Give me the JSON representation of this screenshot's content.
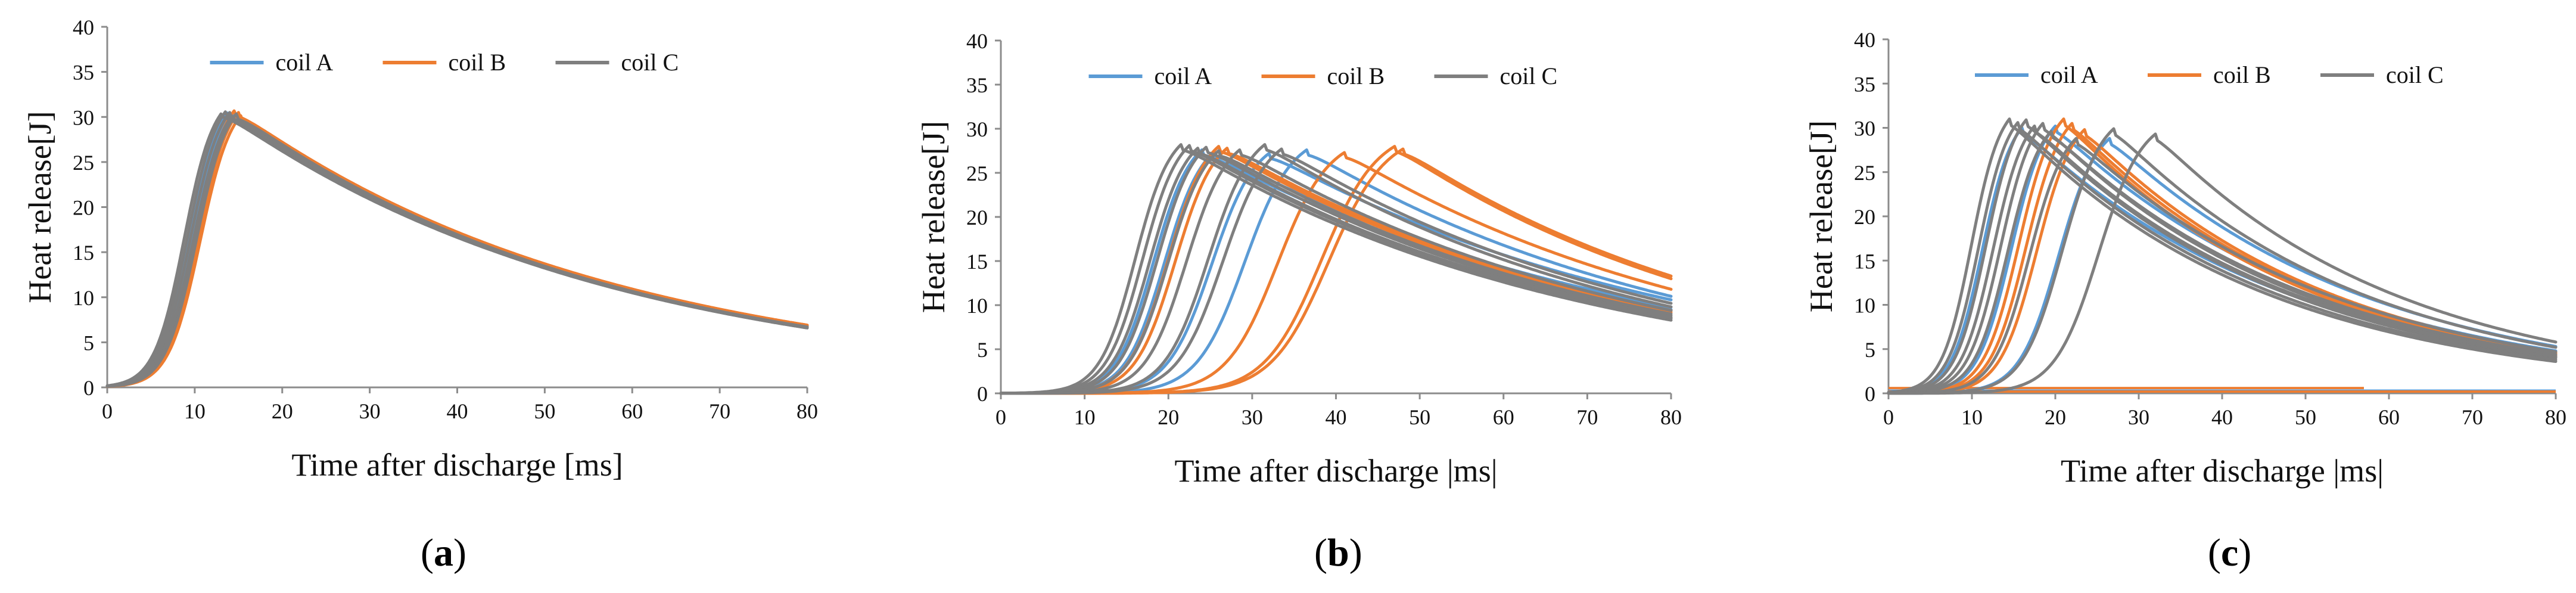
{
  "figure": {
    "colors": {
      "coil_a": "#5B9BD5",
      "coil_b": "#ED7D31",
      "coil_c": "#7F7F7F",
      "axis": "#8c8c8c"
    },
    "panels": [
      {
        "label": "a",
        "caption_open": "(",
        "caption_close": ")"
      },
      {
        "label": "b",
        "caption_open": "(",
        "caption_close": ")"
      },
      {
        "label": "c",
        "caption_open": "(",
        "caption_close": ")"
      }
    ]
  },
  "chart_data": [
    {
      "type": "line",
      "panel": "a",
      "title": "",
      "xlabel": "Time after discharge [ms]",
      "ylabel": "Heat release[J]",
      "xlim": [
        0,
        80
      ],
      "ylim": [
        0,
        40
      ],
      "xticks": [
        0,
        10,
        20,
        30,
        40,
        50,
        60,
        70,
        80
      ],
      "yticks": [
        0,
        5,
        10,
        15,
        20,
        25,
        30,
        35,
        40
      ],
      "legend": [
        "coil A",
        "coil B",
        "coil C"
      ],
      "legend_position": "top-center",
      "note": "Each curve: rise centred at peak time, peak value, exponential decay tail ending near end value at 80 ms",
      "series": [
        {
          "name": "coil A",
          "curves": [
            {
              "peak_time": 13.8,
              "peak": 30.5,
              "end": 6.8
            },
            {
              "peak_time": 14.2,
              "peak": 30.6,
              "end": 6.8
            },
            {
              "peak_time": 14.6,
              "peak": 30.4,
              "end": 6.7
            }
          ]
        },
        {
          "name": "coil B",
          "curves": [
            {
              "peak_time": 14.6,
              "peak": 30.8,
              "end": 6.9
            },
            {
              "peak_time": 15.0,
              "peak": 30.5,
              "end": 6.9
            },
            {
              "peak_time": 15.3,
              "peak": 30.2,
              "end": 6.8
            }
          ]
        },
        {
          "name": "coil C",
          "curves": [
            {
              "peak_time": 13.2,
              "peak": 30.6,
              "end": 6.7
            },
            {
              "peak_time": 13.6,
              "peak": 30.7,
              "end": 6.7
            },
            {
              "peak_time": 14.0,
              "peak": 30.5,
              "end": 6.6
            },
            {
              "peak_time": 14.4,
              "peak": 30.3,
              "end": 6.6
            },
            {
              "peak_time": 14.8,
              "peak": 30.4,
              "end": 6.7
            }
          ]
        }
      ]
    },
    {
      "type": "line",
      "panel": "b",
      "title": "",
      "xlabel": "Time after discharge |ms|",
      "ylabel": "Heat release[J]",
      "xlim": [
        0,
        80
      ],
      "ylim": [
        0,
        40
      ],
      "xticks": [
        0,
        10,
        20,
        30,
        40,
        50,
        60,
        70,
        80
      ],
      "yticks": [
        0,
        5,
        10,
        15,
        20,
        25,
        30,
        35,
        40
      ],
      "legend": [
        "coil A",
        "coil B",
        "coil C"
      ],
      "legend_position": "top-center",
      "series": [
        {
          "name": "coil A",
          "curves": [
            {
              "peak_time": 24.0,
              "peak": 27.6,
              "end": 9.5
            },
            {
              "peak_time": 25.5,
              "peak": 27.4,
              "end": 9.8
            },
            {
              "peak_time": 32.0,
              "peak": 27.2,
              "end": 10.6
            },
            {
              "peak_time": 36.5,
              "peak": 27.6,
              "end": 11.0
            }
          ]
        },
        {
          "name": "coil B",
          "curves": [
            {
              "peak_time": 26.0,
              "peak": 28.0,
              "end": 9.2
            },
            {
              "peak_time": 27.0,
              "peak": 27.8,
              "end": 9.4
            },
            {
              "peak_time": 41.0,
              "peak": 27.3,
              "end": 11.8
            },
            {
              "peak_time": 47.0,
              "peak": 28.0,
              "end": 13.0
            },
            {
              "peak_time": 48.0,
              "peak": 27.7,
              "end": 13.3
            }
          ]
        },
        {
          "name": "coil C",
          "curves": [
            {
              "peak_time": 21.5,
              "peak": 28.2,
              "end": 8.3
            },
            {
              "peak_time": 22.5,
              "peak": 28.1,
              "end": 8.5
            },
            {
              "peak_time": 23.5,
              "peak": 27.8,
              "end": 8.6
            },
            {
              "peak_time": 24.5,
              "peak": 27.9,
              "end": 8.8
            },
            {
              "peak_time": 26.0,
              "peak": 27.5,
              "end": 9.0
            },
            {
              "peak_time": 28.5,
              "peak": 27.6,
              "end": 9.4
            },
            {
              "peak_time": 31.5,
              "peak": 28.2,
              "end": 9.8
            },
            {
              "peak_time": 33.5,
              "peak": 27.7,
              "end": 10.2
            }
          ]
        }
      ]
    },
    {
      "type": "line",
      "panel": "c",
      "title": "",
      "xlabel": "Time after discharge |ms|",
      "ylabel": "Heat release[J]",
      "xlim": [
        0,
        80
      ],
      "ylim": [
        0,
        40
      ],
      "xticks": [
        0,
        10,
        20,
        30,
        40,
        50,
        60,
        70,
        80
      ],
      "yticks": [
        0,
        5,
        10,
        15,
        20,
        25,
        30,
        35,
        40
      ],
      "legend": [
        "coil A",
        "coil B",
        "coil C"
      ],
      "legend_position": "top-center",
      "flat_lines_near_zero": [
        {
          "name": "coil B",
          "y": 0.6,
          "x_end": 57
        },
        {
          "name": "coil A",
          "y": 0.3,
          "x_end": 80
        },
        {
          "name": "coil B",
          "y": 0.2,
          "x_end": 80
        }
      ],
      "series": [
        {
          "name": "coil A",
          "curves": [
            {
              "peak_time": 16.0,
              "peak": 30.0,
              "end": 4.2
            },
            {
              "peak_time": 20.0,
              "peak": 30.2,
              "end": 4.8
            },
            {
              "peak_time": 26.5,
              "peak": 28.8,
              "end": 5.3
            }
          ]
        },
        {
          "name": "coil B",
          "curves": [
            {
              "peak_time": 21.0,
              "peak": 31.0,
              "end": 4.3
            },
            {
              "peak_time": 22.0,
              "peak": 30.5,
              "end": 4.5
            },
            {
              "peak_time": 23.5,
              "peak": 29.8,
              "end": 4.6
            }
          ]
        },
        {
          "name": "coil C",
          "curves": [
            {
              "peak_time": 14.5,
              "peak": 31.0,
              "end": 3.6
            },
            {
              "peak_time": 15.5,
              "peak": 30.6,
              "end": 3.8
            },
            {
              "peak_time": 16.5,
              "peak": 30.9,
              "end": 4.0
            },
            {
              "peak_time": 17.5,
              "peak": 30.2,
              "end": 4.1
            },
            {
              "peak_time": 18.5,
              "peak": 30.5,
              "end": 4.2
            },
            {
              "peak_time": 19.5,
              "peak": 29.6,
              "end": 4.4
            },
            {
              "peak_time": 22.5,
              "peak": 28.8,
              "end": 4.7
            },
            {
              "peak_time": 27.0,
              "peak": 29.9,
              "end": 5.2
            },
            {
              "peak_time": 32.0,
              "peak": 29.3,
              "end": 5.8
            }
          ]
        }
      ]
    }
  ]
}
